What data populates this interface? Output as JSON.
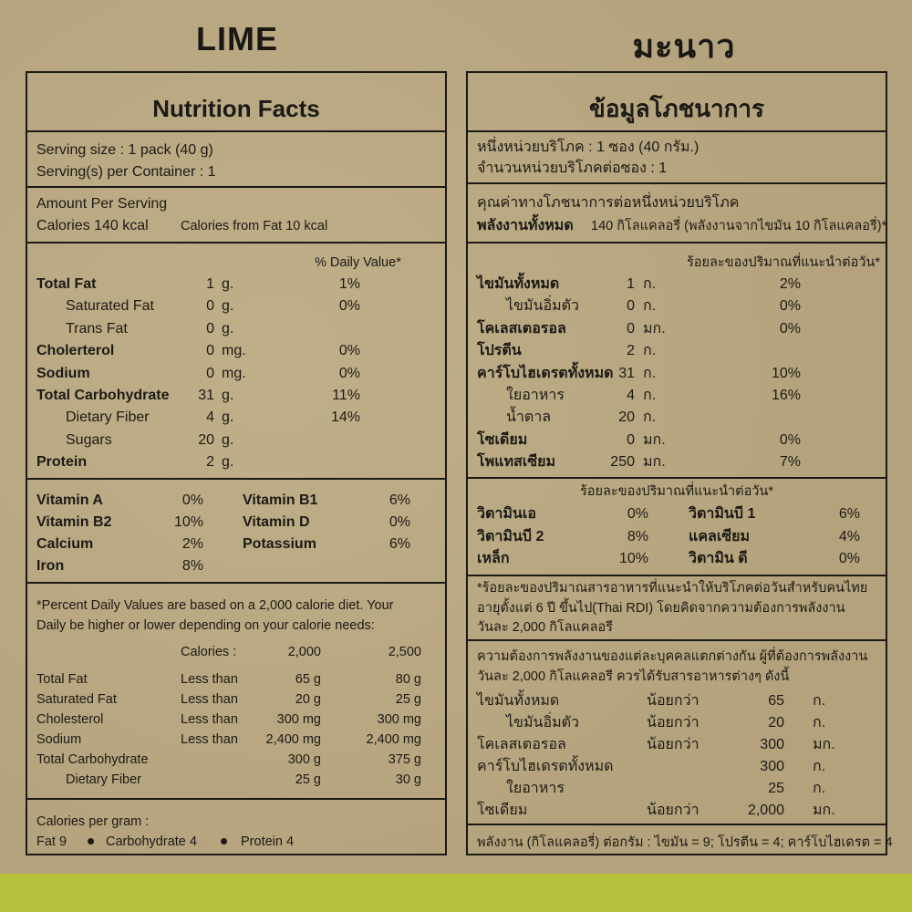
{
  "headings": {
    "en": "LIME",
    "th": "มะนาว"
  },
  "en": {
    "title": "Nutrition Facts",
    "serving_size": "Serving size : 1 pack (40 g)",
    "servings_per_container": "Serving(s) per Container : 1",
    "amount_per_serving": "Amount Per Serving",
    "calories": "Calories 140 kcal",
    "calories_from_fat": "Calories from Fat 10 kcal",
    "dv_header": "% Daily Value*",
    "nutrients": [
      {
        "name": "Total Fat",
        "amount": "1",
        "unit": "g.",
        "dv": "1%",
        "bold": true
      },
      {
        "name": "Saturated Fat",
        "amount": "0",
        "unit": "g.",
        "dv": "0%",
        "indent": true
      },
      {
        "name": "Trans Fat",
        "amount": "0",
        "unit": "g.",
        "dv": "",
        "indent": true
      },
      {
        "name": "Cholerterol",
        "amount": "0",
        "unit": "mg.",
        "dv": "0%",
        "bold": true
      },
      {
        "name": "Sodium",
        "amount": "0",
        "unit": "mg.",
        "dv": "0%",
        "bold": true
      },
      {
        "name": "Total Carbohydrate",
        "amount": "31",
        "unit": "g.",
        "dv": "11%",
        "bold": true
      },
      {
        "name": "Dietary Fiber",
        "amount": "4",
        "unit": "g.",
        "dv": "14%",
        "indent": true
      },
      {
        "name": "Sugars",
        "amount": "20",
        "unit": "g.",
        "dv": "",
        "indent": true
      },
      {
        "name": "Protein",
        "amount": "2",
        "unit": "g.",
        "dv": "",
        "bold": true
      }
    ],
    "vitamins": [
      {
        "name": "Vitamin A",
        "dv": "0%"
      },
      {
        "name": "Vitamin B1",
        "dv": "6%"
      },
      {
        "name": "Vitamin B2",
        "dv": "10%"
      },
      {
        "name": "Vitamin D",
        "dv": "0%"
      },
      {
        "name": "Calcium",
        "dv": "2%"
      },
      {
        "name": "Potassium",
        "dv": "6%"
      },
      {
        "name": "Iron",
        "dv": "8%"
      }
    ],
    "footnote": [
      "*Percent Daily Values are based on a 2,000 calorie diet. Your",
      "Daily be higher or lower depending on your calorie needs:"
    ],
    "ref_header": [
      "",
      "Calories :",
      "2,000",
      "2,500"
    ],
    "ref_rows": [
      [
        "Total Fat",
        "Less than",
        "65 g",
        "80 g"
      ],
      [
        "Saturated Fat",
        "Less than",
        "20 g",
        "25 g"
      ],
      [
        "Cholesterol",
        "Less than",
        "300 mg",
        "300 mg"
      ],
      [
        "Sodium",
        "Less than",
        "2,400 mg",
        "2,400 mg"
      ],
      [
        "Total Carbohydrate",
        "",
        "300 g",
        "375 g"
      ],
      [
        "Dietary Fiber",
        "",
        "25 g",
        "30 g"
      ]
    ],
    "cal_per_gram": "Calories per gram :",
    "cal_items": [
      "Fat 9",
      "Carbohydrate 4",
      "Protein 4"
    ]
  },
  "th": {
    "title": "ข้อมูลโภชนาการ",
    "serving_size": "หนึ่งหน่วยบริโภค : 1 ซอง (40 กรัม.)",
    "servings_per_container": "จำนวนหน่วยบริโภคต่อซอง : 1",
    "amount_per_serving": "คุณค่าทางโภชนาการต่อหนึ่งหน่วยบริโภค",
    "calories_label": "พลังงานทั้งหมด",
    "calories_value": "140 กิโลแคลอรี่ (พลังงานจากไขมัน 10 กิโลแคลอรี่)*",
    "dv_header": "ร้อยละของปริมาณที่แนะนำต่อวัน*",
    "nutrients": [
      {
        "name": "ไขมันทั้งหมด",
        "amount": "1",
        "unit": "ก.",
        "dv": "2%",
        "bold": true
      },
      {
        "name": "ไขมันอิ่มตัว",
        "amount": "0",
        "unit": "ก.",
        "dv": "0%",
        "indent": true
      },
      {
        "name": "โคเลสเตอรอล",
        "amount": "0",
        "unit": "มก.",
        "dv": "0%",
        "bold": true
      },
      {
        "name": "โปรตีน",
        "amount": "2",
        "unit": "ก.",
        "dv": "",
        "bold": true
      },
      {
        "name": "คาร์โบไฮเดรตทั้งหมด",
        "amount": "31",
        "unit": "ก.",
        "dv": "10%",
        "bold": true
      },
      {
        "name": "ใยอาหาร",
        "amount": "4",
        "unit": "ก.",
        "dv": "16%",
        "indent": true
      },
      {
        "name": "น้ำตาล",
        "amount": "20",
        "unit": "ก.",
        "dv": "",
        "indent": true
      },
      {
        "name": "โซเดียม",
        "amount": "0",
        "unit": "มก.",
        "dv": "0%",
        "bold": true
      },
      {
        "name": "โพแทสเซียม",
        "amount": "250",
        "unit": "มก.",
        "dv": "7%",
        "bold": true
      }
    ],
    "vit_header": "ร้อยละของปริมาณที่แนะนำต่อวัน*",
    "vitamins": [
      {
        "name": "วิตามินเอ",
        "dv": "0%"
      },
      {
        "name": "วิตามินบี 1",
        "dv": "6%"
      },
      {
        "name": "วิตามินบี 2",
        "dv": "8%"
      },
      {
        "name": "แคลเซียม",
        "dv": "4%"
      },
      {
        "name": "เหล็ก",
        "dv": "10%"
      },
      {
        "name": "วิตามิน ดี",
        "dv": "0%"
      }
    ],
    "footnote": [
      "*ร้อยละของปริมาณสารอาหารที่แนะนำให้บริโภคต่อวันสำหรับคนไทย",
      "อายุตั้งแต่ 6 ปี ขึ้นไป(Thai RDI) โดยคิดจากความต้องการพลังงาน",
      "วันละ 2,000 กิโลแคลอรี"
    ],
    "needs": [
      "ความต้องการพลังงานของแต่ละบุคคลแตกต่างกัน ผู้ที่ต้องการพลังงาน",
      "วันละ 2,000 กิโลแคลอรี ควรได้รับสารอาหารต่างๆ ดังนี้"
    ],
    "ref_rows": [
      [
        "ไขมันทั้งหมด",
        "น้อยกว่า",
        "65",
        "ก."
      ],
      [
        "ไขมันอิ่มตัว",
        "น้อยกว่า",
        "20",
        "ก."
      ],
      [
        "โคเลสเตอรอล",
        "น้อยกว่า",
        "300",
        "มก."
      ],
      [
        "คาร์โบไฮเดรตทั้งหมด",
        "",
        "300",
        "ก."
      ],
      [
        "ใยอาหาร",
        "",
        "25",
        "ก."
      ],
      [
        "โซเดียม",
        "น้อยกว่า",
        "2,000",
        "มก."
      ]
    ],
    "energy_note": "พลังงาน (กิโลแคลอรี่) ต่อกรัม : ไขมัน = 9; โปรตีน = 4; คาร์โบไฮเดรต = 4"
  }
}
